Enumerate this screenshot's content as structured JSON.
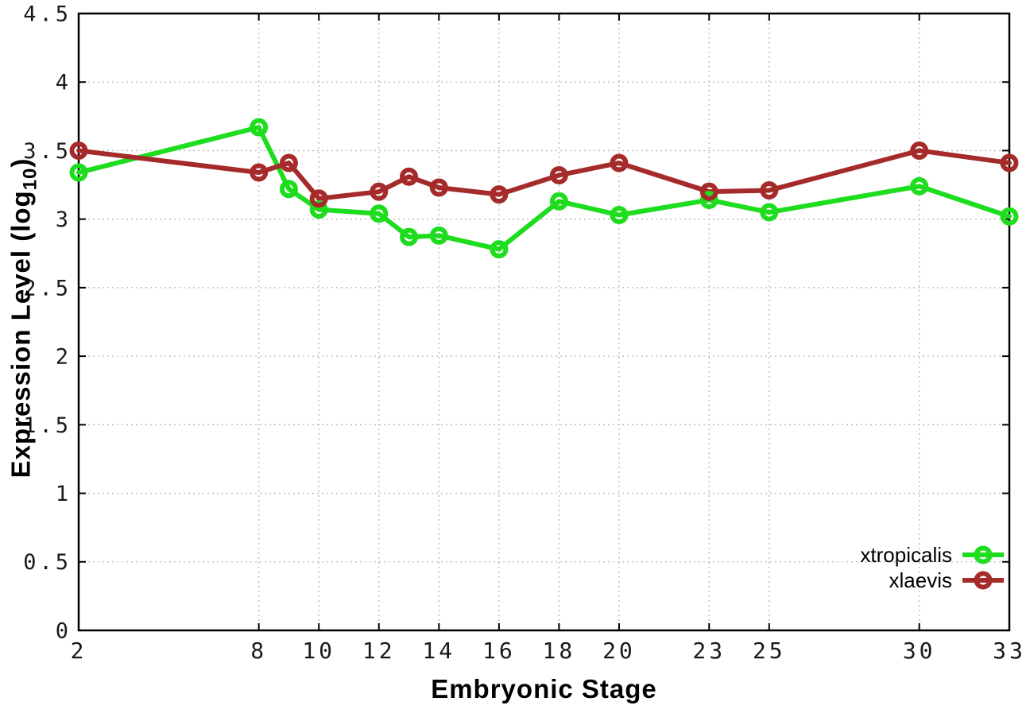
{
  "chart_data": {
    "type": "line",
    "title": "",
    "xlabel": "Embryonic Stage",
    "ylabel_pre": "Expression Level (log",
    "ylabel_sub": "10",
    "ylabel_post": ")",
    "x": [
      2,
      8,
      9,
      10,
      12,
      13,
      14,
      16,
      18,
      20,
      23,
      25,
      30,
      33
    ],
    "series": [
      {
        "name": "xtropicalis",
        "color": "#1edc1e",
        "values": [
          3.34,
          3.67,
          3.22,
          3.07,
          3.04,
          2.87,
          2.88,
          2.78,
          3.13,
          3.03,
          3.14,
          3.05,
          3.24,
          3.02
        ]
      },
      {
        "name": "xlaevis",
        "color": "#a52a2a",
        "values": [
          3.5,
          3.34,
          3.41,
          3.15,
          3.2,
          3.31,
          3.23,
          3.18,
          3.32,
          3.41,
          3.2,
          3.21,
          3.5,
          3.41
        ]
      }
    ],
    "xticks": [
      2,
      8,
      10,
      12,
      14,
      16,
      18,
      20,
      23,
      25,
      30,
      33
    ],
    "yticks": [
      0,
      0.5,
      1,
      1.5,
      2,
      2.5,
      3,
      3.5,
      4,
      4.5
    ],
    "xlim": [
      2,
      33
    ],
    "ylim": [
      0,
      4.5
    ],
    "grid": true,
    "legend_position": "bottom-right",
    "colors": {
      "grid": "#b8b8b8",
      "axis": "#000000",
      "tick_text": "#1a1a1a"
    }
  }
}
